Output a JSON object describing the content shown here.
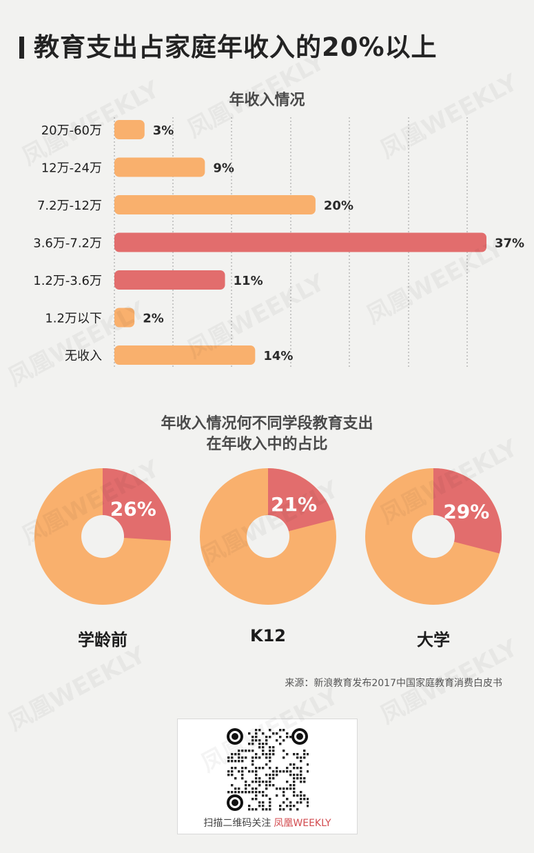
{
  "headline": "教育支出占家庭年收入的20%以上",
  "chart_data": [
    {
      "type": "bar",
      "orientation": "horizontal",
      "title": "年收入情况",
      "categories": [
        "20万-60万",
        "12万-24万",
        "7.2万-12万",
        "3.6万-7.2万",
        "1.2万-3.6万",
        "1.2万以下",
        "无收入"
      ],
      "values": [
        3,
        9,
        20,
        37,
        11,
        2,
        14
      ],
      "value_labels": [
        "3%",
        "9%",
        "20%",
        "37%",
        "11%",
        "2%",
        "14%"
      ],
      "highlighted": [
        false,
        false,
        false,
        true,
        true,
        false,
        false
      ],
      "xlim": [
        0,
        37
      ],
      "grid": true
    },
    {
      "type": "pie",
      "style": "donut",
      "title": "年收入情况何不同学段教育支出在年收入中的占比",
      "title_lines": [
        "年收入情况何不同学段教育支出",
        "在年收入中的占比"
      ],
      "charts": [
        {
          "name": "学龄前",
          "value": 26,
          "label": "26%"
        },
        {
          "name": "K12",
          "value": 21,
          "label": "21%"
        },
        {
          "name": "大学",
          "value": 29,
          "label": "29%"
        }
      ]
    }
  ],
  "colors": {
    "bar_default": "#f9b06d",
    "bar_highlight": "#e26d6d",
    "donut_base": "#f9b06d",
    "donut_slice": "#e26d6d",
    "background": "#f2f2f0",
    "brand": "#d24a4e"
  },
  "source": "来源：新浪教育发布2017中国家庭教育消费白皮书",
  "qr": {
    "caption": "扫描二维码关注",
    "brand": "凤凰WEEKLY"
  },
  "watermark": "凤凰WEEKLY",
  "icons": {
    "qr": "qr-code-icon"
  }
}
